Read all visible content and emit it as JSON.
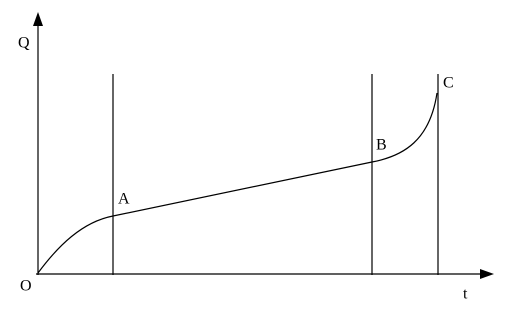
{
  "axes": {
    "y_label": "Q",
    "x_label": "t",
    "origin": "O"
  },
  "points": [
    {
      "label": "A"
    },
    {
      "label": "B"
    },
    {
      "label": "C"
    }
  ]
}
